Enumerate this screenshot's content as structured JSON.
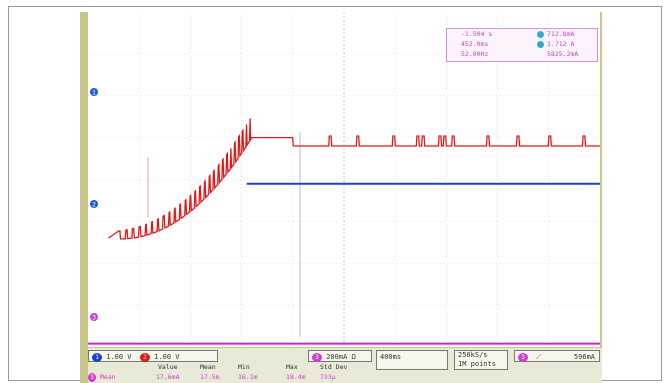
{
  "chart_data": {
    "type": "line",
    "title": "",
    "xlabel": "",
    "ylabel": "",
    "x_divisions": 10,
    "y_divisions": 8,
    "grid": true,
    "channel_markers": [
      {
        "label": "1",
        "color": "#1f5fd0"
      },
      {
        "label": "2",
        "color": "#1f5fd0"
      },
      {
        "label": "3",
        "color": "#d040d0"
      }
    ],
    "series": [
      {
        "name": "",
        "color": "#e01818",
        "x": [
          0.0,
          0.4,
          0.6,
          1.0,
          1.4,
          1.8,
          2.2,
          2.6,
          2.8,
          3.0,
          3.2,
          4.0,
          6.0,
          10.0
        ],
        "y": [
          2.6,
          2.6,
          2.55,
          2.58,
          2.7,
          2.9,
          3.2,
          3.6,
          4.1,
          4.7,
          5.0,
          5.0,
          4.8,
          4.8
        ]
      },
      {
        "name": "",
        "color": "#1f3fd0",
        "x": [
          0.0,
          3.1,
          3.1,
          10.0
        ],
        "y": [
          2.6,
          2.6,
          3.9,
          3.9
        ]
      },
      {
        "name": "",
        "color": "#d020d0",
        "x": [
          0.0,
          10.0
        ],
        "y": [
          0.08,
          0.08
        ]
      }
    ]
  },
  "measurements": {
    "rows": [
      {
        "a": "-1.504 s",
        "b": "712.8mA",
        "badge": "a"
      },
      {
        "a": "452.0ms",
        "b": "1.712 A",
        "badge": "b"
      },
      {
        "a": "52.00Hz",
        "b": "5825.2mA",
        "badge": ""
      }
    ]
  },
  "status": {
    "ch1": "1.00 V",
    "ch2": "1.00 V",
    "ch3": "200mA Ω",
    "timebase": "400ms",
    "rate": "250kS/s",
    "points": "1M points",
    "trigger_level": "596mA",
    "stat_headers": [
      "Value",
      "Mean",
      "Min",
      "Max",
      "Std Dev"
    ],
    "stat_label": "Mean",
    "stat_values": [
      "17.6mA",
      "17.5m",
      "16.1m",
      "18.4m",
      "733µ"
    ]
  },
  "colors": {
    "bezel": "#c9c689",
    "grid": "#c8c8c8"
  }
}
